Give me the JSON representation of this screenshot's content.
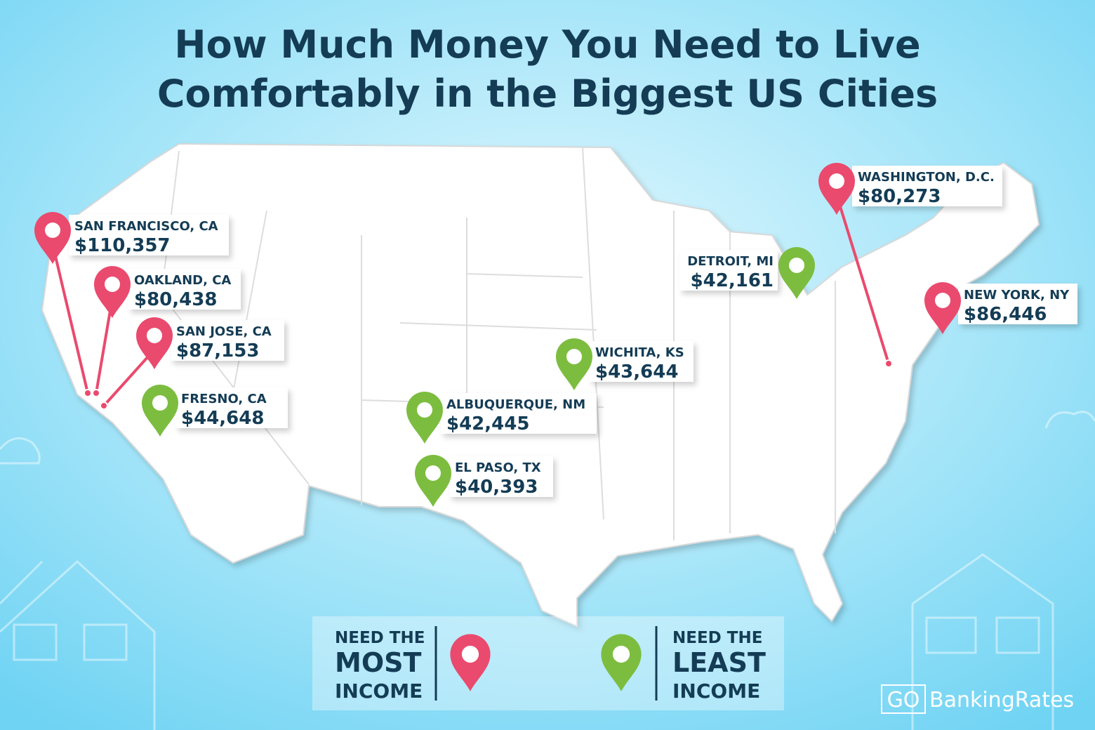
{
  "title_lines": [
    "How Much Money You Need to Live",
    "Comfortably in the Biggest US Cities"
  ],
  "cities": [
    {
      "name": "SAN FRANCISCO, CA",
      "amount": "$110,357",
      "group": "most"
    },
    {
      "name": "OAKLAND, CA",
      "amount": "$80,438",
      "group": "most"
    },
    {
      "name": "SAN JOSE, CA",
      "amount": "$87,153",
      "group": "most"
    },
    {
      "name": "FRESNO, CA",
      "amount": "$44,648",
      "group": "least"
    },
    {
      "name": "ALBUQUERQUE, NM",
      "amount": "$42,445",
      "group": "least"
    },
    {
      "name": "EL PASO, TX",
      "amount": "$40,393",
      "group": "least"
    },
    {
      "name": "WICHITA, KS",
      "amount": "$43,644",
      "group": "least"
    },
    {
      "name": "DETROIT, MI",
      "amount": "$42,161",
      "group": "least"
    },
    {
      "name": "WASHINGTON, D.C.",
      "amount": "$80,273",
      "group": "most"
    },
    {
      "name": "NEW YORK, NY",
      "amount": "$86,446",
      "group": "most"
    }
  ],
  "legend": {
    "most": {
      "lines": [
        "NEED THE",
        "MOST",
        "INCOME"
      ],
      "color": "#ea4a6e"
    },
    "least": {
      "lines": [
        "NEED THE",
        "LEAST",
        "INCOME"
      ],
      "color": "#7cbd3f"
    }
  },
  "brand": [
    "GO",
    "BankingRates"
  ]
}
